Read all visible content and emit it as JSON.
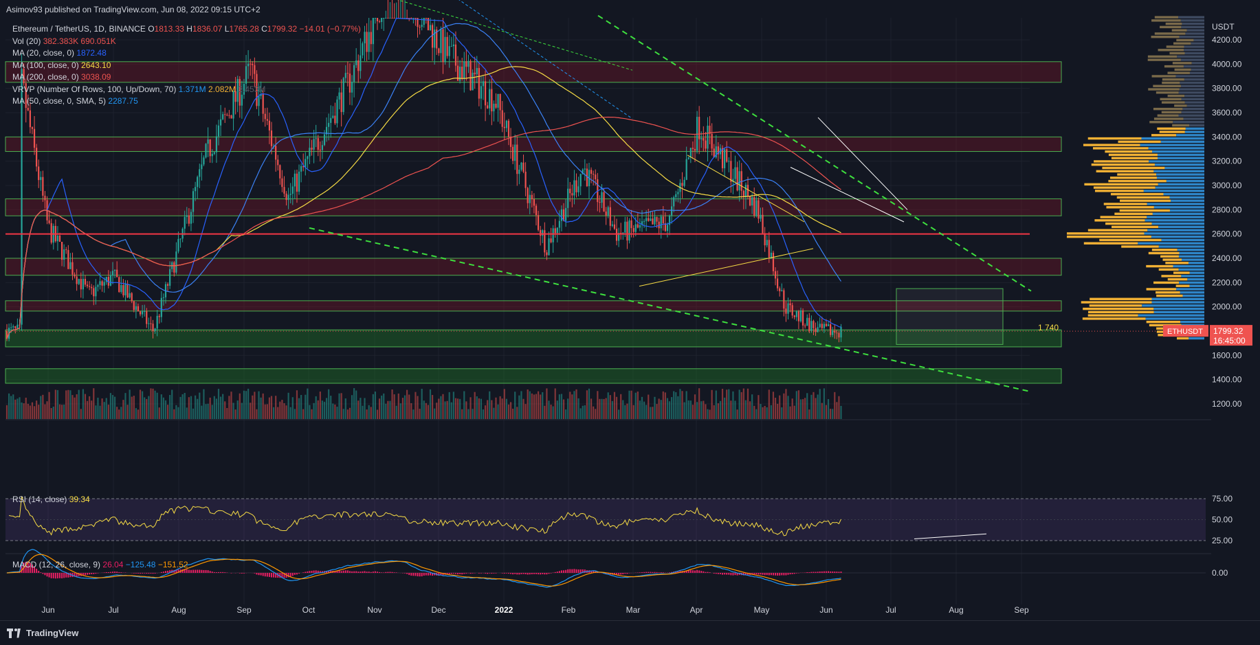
{
  "publisher": "Asimov93 published on TradingView.com, Jun 08, 2022 09:15 UTC+2",
  "symbol": {
    "title": "Ethereum / TetherUS, 1D, BINANCE",
    "o_label": "O",
    "o": "1813.33",
    "h_label": "H",
    "h": "1836.07",
    "l_label": "L",
    "l": "1765.28",
    "c_label": "C",
    "c": "1799.32",
    "change": "−14.01 (−0.77%)"
  },
  "indicators": [
    {
      "label": "Vol (20)",
      "values": [
        "382.383K",
        "690.051K"
      ],
      "colors": [
        "#ef5350",
        "#ef5350"
      ]
    },
    {
      "label": "MA (20, close, 0)",
      "values": [
        "1872.48"
      ],
      "colors": [
        "#2962ff"
      ]
    },
    {
      "label": "MA (100, close, 0)",
      "values": [
        "2643.10"
      ],
      "colors": [
        "#f7dc45"
      ]
    },
    {
      "label": "MA (200, close, 0)",
      "values": [
        "3038.09"
      ],
      "colors": [
        "#ef5350"
      ]
    },
    {
      "label": "VRVP (Number Of Rows, 100, Up/Down, 70)",
      "values": [
        "1.371M",
        "2.082M",
        "3.453M"
      ],
      "colors": [
        "#2196f3",
        "#f2b134",
        "#555a66"
      ]
    },
    {
      "label": "MA (50, close, 0, SMA, 5)",
      "values": [
        "2287.75"
      ],
      "colors": [
        "#2196f3"
      ]
    }
  ],
  "rsi": {
    "label": "RSI (14, close)",
    "value": "39.34",
    "levels": [
      "75.00",
      "50.00",
      "25.00"
    ]
  },
  "macd": {
    "label": "MACD (12, 26, close, 9)",
    "values": [
      "26.04",
      "−125.48",
      "−151.52"
    ],
    "colors": [
      "#e91e63",
      "#2196f3",
      "#ff9800"
    ],
    "zero": "0.00"
  },
  "price_axis": {
    "currency": "USDT",
    "ticks": [
      "4200.00",
      "4000.00",
      "3800.00",
      "3600.00",
      "3400.00",
      "3200.00",
      "3000.00",
      "2800.00",
      "2600.00",
      "2400.00",
      "2200.00",
      "2000.00",
      "1800.00",
      "1600.00",
      "1400.00",
      "1200.00"
    ]
  },
  "last_price": {
    "symbol": "ETHUSDT",
    "price": "1799.32",
    "countdown": "16:45:00"
  },
  "annotation": "1 740",
  "time_axis": [
    "Jun",
    "Jul",
    "Aug",
    "Sep",
    "Oct",
    "Nov",
    "Dec",
    "2022",
    "Feb",
    "Mar",
    "Apr",
    "May",
    "Jun",
    "Jul",
    "Aug",
    "Sep"
  ],
  "brand": "TradingView",
  "colors": {
    "bg": "#131722",
    "up": "#26a69a",
    "down": "#ef5350",
    "ma20": "#2962ff",
    "ma50": "#2196f3",
    "ma100": "#f7dc45",
    "ma200": "#ef5350",
    "trend": "#3ee03e",
    "zone_red": "#4a1a22",
    "zone_green": "#1c4a22"
  },
  "chart_data": {
    "type": "candlestick",
    "title": "Ethereum / TetherUS, 1D, BINANCE",
    "ylabel": "USDT",
    "ylim": [
      1100,
      4400
    ],
    "x_range": [
      "May 2021",
      "Sep 2022"
    ],
    "resistance_zones_red": [
      [
        3850,
        4020
      ],
      [
        3280,
        3400
      ],
      [
        2750,
        2890
      ],
      [
        2260,
        2400
      ],
      [
        1965,
        2050
      ]
    ],
    "support_zones_green": [
      [
        1670,
        1810
      ],
      [
        1370,
        1490
      ]
    ],
    "horizontal_level": 2600,
    "annotation_level": 1740,
    "descending_trendlines": [
      {
        "from": [
          "Sep 2021",
          2660
        ],
        "to": [
          "Sep 2022",
          1300
        ]
      },
      {
        "from": [
          "Dec 2021",
          4850
        ],
        "to": [
          "Sep 2022",
          2120
        ]
      }
    ],
    "ma_values": {
      "MA20": 1872.48,
      "MA50": 2287.75,
      "MA100": 2643.1,
      "MA200": 3038.09
    },
    "price_path": [
      [
        "May 2021",
        3900
      ],
      [
        "Jun 2021",
        2600
      ],
      [
        "Jul 2021",
        1900
      ],
      [
        "Jul 2021",
        2300
      ],
      [
        "Aug 2021",
        3200
      ],
      [
        "Sep 2021",
        3900
      ],
      [
        "Sep 2021",
        2900
      ],
      [
        "Oct 2021",
        3800
      ],
      [
        "Nov 2021",
        4700
      ],
      [
        "Dec 2021",
        4100
      ],
      [
        "Jan 2022",
        3300
      ],
      [
        "Jan 2022",
        2400
      ],
      [
        "Feb 2022",
        3150
      ],
      [
        "Mar 2022",
        2500
      ],
      [
        "Apr 2022",
        3500
      ],
      [
        "May 2022",
        2700
      ],
      [
        "May 2022",
        1900
      ],
      [
        "Jun 2022",
        1799.32
      ]
    ],
    "rsi": {
      "value": 39.34,
      "levels": [
        75,
        50,
        25
      ]
    },
    "macd": {
      "macd": -125.48,
      "signal": -151.52,
      "histogram": 26.04
    }
  }
}
